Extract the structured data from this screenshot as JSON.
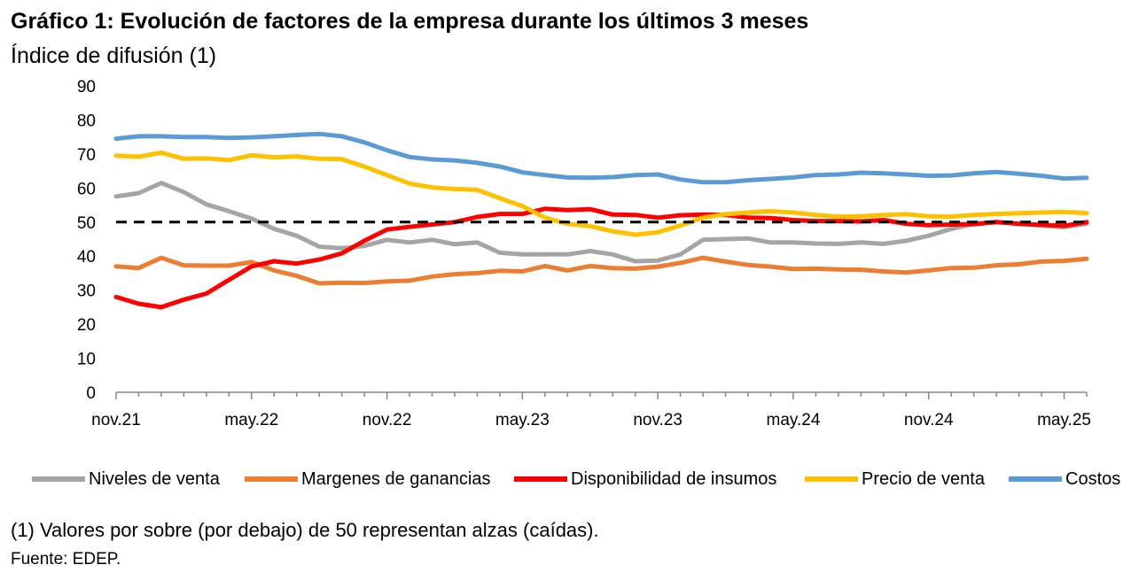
{
  "header": {
    "title": "Gráfico 1: Evolución de factores de la empresa durante los últimos 3 meses",
    "subtitle": "Índice de difusión (1)"
  },
  "footer": {
    "note": "(1) Valores por sobre (por debajo) de 50 representan alzas (caídas).",
    "source": "Fuente: EDEP."
  },
  "chart_data": {
    "type": "line",
    "ylim": [
      0,
      90
    ],
    "yticks": [
      0,
      10,
      20,
      30,
      40,
      50,
      60,
      70,
      80,
      90
    ],
    "x_tick_labels": [
      "nov.21",
      "may.22",
      "nov.22",
      "may.23",
      "nov.23",
      "may.24",
      "nov.24",
      "may.25"
    ],
    "x_tick_indices": [
      0,
      6,
      12,
      18,
      24,
      30,
      36,
      42
    ],
    "x_count": 44,
    "reference_line": 50,
    "grid": false,
    "legend_position": "bottom",
    "series": [
      {
        "name": "Niveles de venta",
        "color": "#a5a5a5",
        "values": [
          57.5,
          58.5,
          61.5,
          58.8,
          55.2,
          53.2,
          51,
          48,
          46,
          42.8,
          42.3,
          43,
          44.8,
          44,
          44.8,
          43.5,
          44,
          41,
          40.5,
          40.5,
          40.5,
          41.5,
          40.5,
          38.5,
          38.7,
          40.5,
          44.8,
          45,
          45.2,
          44,
          44,
          43.7,
          43.6,
          44,
          43.6,
          44.5,
          46,
          48,
          49.5,
          50,
          49.5,
          49,
          48.5,
          49.5
        ]
      },
      {
        "name": "Margenes de ganancias",
        "color": "#ed7d31",
        "values": [
          37,
          36.5,
          39.5,
          37.3,
          37.2,
          37.2,
          38.3,
          35.8,
          34.2,
          32,
          32.2,
          32.1,
          32.6,
          32.8,
          34,
          34.7,
          35,
          35.7,
          35.5,
          37.1,
          35.8,
          37.1,
          36.5,
          36.3,
          36.9,
          38,
          39.5,
          38.4,
          37.4,
          36.9,
          36.2,
          36.3,
          36.1,
          36,
          35.5,
          35.2,
          35.8,
          36.5,
          36.6,
          37.3,
          37.6,
          38.4,
          38.6,
          39.2
        ]
      },
      {
        "name": "Disponibilidad de insumos",
        "color": "#ff0000",
        "values": [
          28,
          26,
          25,
          27.2,
          29,
          33,
          37,
          38.5,
          37.8,
          39,
          40.8,
          44.5,
          47.8,
          48.6,
          49.3,
          50,
          51.5,
          52.4,
          52.4,
          53.9,
          53.5,
          53.8,
          52.2,
          52.1,
          51.3,
          52,
          52.2,
          52.1,
          51.3,
          51.2,
          50.6,
          50.3,
          50.3,
          50.2,
          50.6,
          49.5,
          49.1,
          49.3,
          49.4,
          50,
          49.5,
          49.2,
          48.9,
          50
        ]
      },
      {
        "name": "Precio de venta",
        "color": "#ffc000",
        "values": [
          69.5,
          69.2,
          70.4,
          68.6,
          68.7,
          68.2,
          69.6,
          69,
          69.3,
          68.6,
          68.5,
          66.3,
          63.8,
          61.3,
          60.2,
          59.7,
          59.5,
          57,
          54.7,
          51.3,
          49.5,
          48.8,
          47.3,
          46.3,
          47,
          49,
          51.3,
          52.3,
          52.8,
          53.2,
          52.8,
          52.1,
          51.6,
          51.7,
          52.1,
          52.3,
          51.7,
          51.6,
          52.1,
          52.4,
          52.6,
          52.8,
          53,
          52.6
        ]
      },
      {
        "name": "Costos",
        "color": "#5b9bd5",
        "values": [
          74.5,
          75.2,
          75.2,
          75,
          75,
          74.7,
          74.9,
          75.2,
          75.6,
          75.9,
          75.2,
          73.4,
          71.1,
          69.1,
          68.4,
          68.1,
          67.4,
          66.3,
          64.6,
          63.8,
          63.1,
          63,
          63.2,
          63.8,
          64,
          62.5,
          61.7,
          61.7,
          62.3,
          62.7,
          63.1,
          63.8,
          64,
          64.5,
          64.3,
          64,
          63.6,
          63.7,
          64.3,
          64.7,
          64.2,
          63.6,
          62.8,
          63
        ]
      }
    ]
  }
}
